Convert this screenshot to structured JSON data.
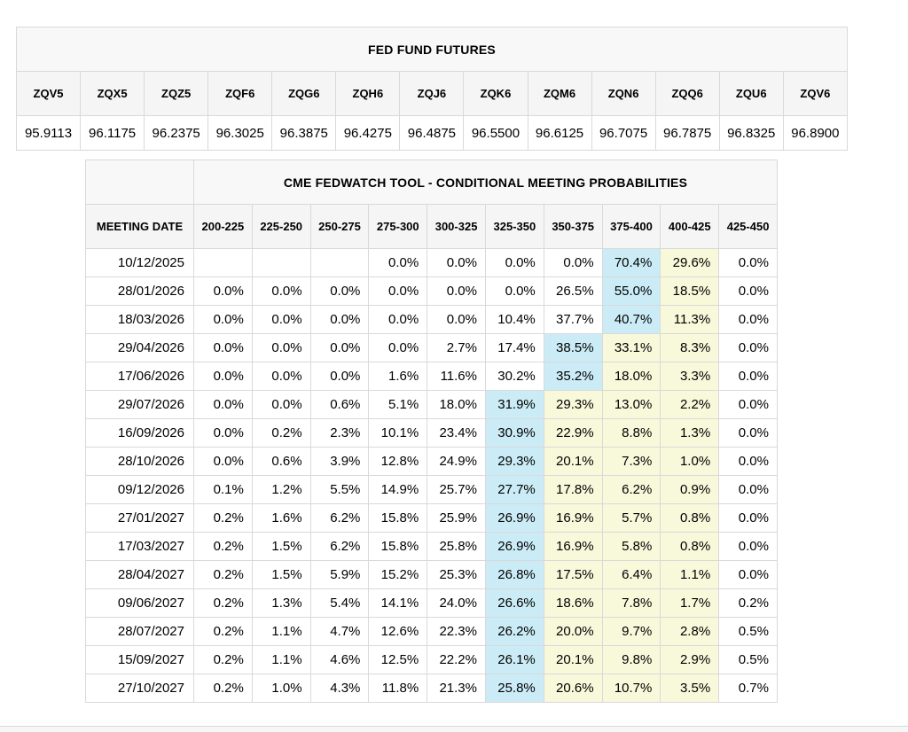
{
  "colors": {
    "highlight_blue": "#cbecf6",
    "highlight_yellow": "#f8f8db",
    "header_bg": "#f5f5f5",
    "title_bg": "#f8f8f8"
  },
  "futures_table": {
    "title": "FED FUND FUTURES",
    "columns": [
      "ZQV5",
      "ZQX5",
      "ZQZ5",
      "ZQF6",
      "ZQG6",
      "ZQH6",
      "ZQJ6",
      "ZQK6",
      "ZQM6",
      "ZQN6",
      "ZQQ6",
      "ZQU6",
      "ZQV6"
    ],
    "values": [
      "95.9113",
      "96.1175",
      "96.2375",
      "96.3025",
      "96.3875",
      "96.4275",
      "96.4875",
      "96.5500",
      "96.6125",
      "96.7075",
      "96.7875",
      "96.8325",
      "96.8900"
    ]
  },
  "fedwatch_table": {
    "title": "CME FEDWATCH TOOL - CONDITIONAL MEETING PROBABILITIES",
    "date_column_header": "MEETING DATE",
    "rate_column_headers": [
      "200-225",
      "225-250",
      "250-275",
      "275-300",
      "300-325",
      "325-350",
      "350-375",
      "375-400",
      "400-425",
      "425-450"
    ],
    "rows": [
      {
        "date": "10/12/2025",
        "values": [
          "",
          "",
          "",
          "0.0%",
          "0.0%",
          "0.0%",
          "0.0%",
          "70.4%",
          "29.6%",
          "0.0%"
        ],
        "highlights": [
          "",
          "",
          "",
          "",
          "",
          "",
          "",
          "blue",
          "yellow",
          ""
        ]
      },
      {
        "date": "28/01/2026",
        "values": [
          "0.0%",
          "0.0%",
          "0.0%",
          "0.0%",
          "0.0%",
          "0.0%",
          "26.5%",
          "55.0%",
          "18.5%",
          "0.0%"
        ],
        "highlights": [
          "",
          "",
          "",
          "",
          "",
          "",
          "",
          "blue",
          "yellow",
          ""
        ]
      },
      {
        "date": "18/03/2026",
        "values": [
          "0.0%",
          "0.0%",
          "0.0%",
          "0.0%",
          "0.0%",
          "10.4%",
          "37.7%",
          "40.7%",
          "11.3%",
          "0.0%"
        ],
        "highlights": [
          "",
          "",
          "",
          "",
          "",
          "",
          "",
          "blue",
          "yellow",
          ""
        ]
      },
      {
        "date": "29/04/2026",
        "values": [
          "0.0%",
          "0.0%",
          "0.0%",
          "0.0%",
          "2.7%",
          "17.4%",
          "38.5%",
          "33.1%",
          "8.3%",
          "0.0%"
        ],
        "highlights": [
          "",
          "",
          "",
          "",
          "",
          "",
          "blue",
          "yellow",
          "yellow",
          ""
        ]
      },
      {
        "date": "17/06/2026",
        "values": [
          "0.0%",
          "0.0%",
          "0.0%",
          "1.6%",
          "11.6%",
          "30.2%",
          "35.2%",
          "18.0%",
          "3.3%",
          "0.0%"
        ],
        "highlights": [
          "",
          "",
          "",
          "",
          "",
          "",
          "blue",
          "yellow",
          "yellow",
          ""
        ]
      },
      {
        "date": "29/07/2026",
        "values": [
          "0.0%",
          "0.0%",
          "0.6%",
          "5.1%",
          "18.0%",
          "31.9%",
          "29.3%",
          "13.0%",
          "2.2%",
          "0.0%"
        ],
        "highlights": [
          "",
          "",
          "",
          "",
          "",
          "blue",
          "yellow",
          "yellow",
          "yellow",
          ""
        ]
      },
      {
        "date": "16/09/2026",
        "values": [
          "0.0%",
          "0.2%",
          "2.3%",
          "10.1%",
          "23.4%",
          "30.9%",
          "22.9%",
          "8.8%",
          "1.3%",
          "0.0%"
        ],
        "highlights": [
          "",
          "",
          "",
          "",
          "",
          "blue",
          "yellow",
          "yellow",
          "yellow",
          ""
        ]
      },
      {
        "date": "28/10/2026",
        "values": [
          "0.0%",
          "0.6%",
          "3.9%",
          "12.8%",
          "24.9%",
          "29.3%",
          "20.1%",
          "7.3%",
          "1.0%",
          "0.0%"
        ],
        "highlights": [
          "",
          "",
          "",
          "",
          "",
          "blue",
          "yellow",
          "yellow",
          "yellow",
          ""
        ]
      },
      {
        "date": "09/12/2026",
        "values": [
          "0.1%",
          "1.2%",
          "5.5%",
          "14.9%",
          "25.7%",
          "27.7%",
          "17.8%",
          "6.2%",
          "0.9%",
          "0.0%"
        ],
        "highlights": [
          "",
          "",
          "",
          "",
          "",
          "blue",
          "yellow",
          "yellow",
          "yellow",
          ""
        ]
      },
      {
        "date": "27/01/2027",
        "values": [
          "0.2%",
          "1.6%",
          "6.2%",
          "15.8%",
          "25.9%",
          "26.9%",
          "16.9%",
          "5.7%",
          "0.8%",
          "0.0%"
        ],
        "highlights": [
          "",
          "",
          "",
          "",
          "",
          "blue",
          "yellow",
          "yellow",
          "yellow",
          ""
        ]
      },
      {
        "date": "17/03/2027",
        "values": [
          "0.2%",
          "1.5%",
          "6.2%",
          "15.8%",
          "25.8%",
          "26.9%",
          "16.9%",
          "5.8%",
          "0.8%",
          "0.0%"
        ],
        "highlights": [
          "",
          "",
          "",
          "",
          "",
          "blue",
          "yellow",
          "yellow",
          "yellow",
          ""
        ]
      },
      {
        "date": "28/04/2027",
        "values": [
          "0.2%",
          "1.5%",
          "5.9%",
          "15.2%",
          "25.3%",
          "26.8%",
          "17.5%",
          "6.4%",
          "1.1%",
          "0.0%"
        ],
        "highlights": [
          "",
          "",
          "",
          "",
          "",
          "blue",
          "yellow",
          "yellow",
          "yellow",
          ""
        ]
      },
      {
        "date": "09/06/2027",
        "values": [
          "0.2%",
          "1.3%",
          "5.4%",
          "14.1%",
          "24.0%",
          "26.6%",
          "18.6%",
          "7.8%",
          "1.7%",
          "0.2%"
        ],
        "highlights": [
          "",
          "",
          "",
          "",
          "",
          "blue",
          "yellow",
          "yellow",
          "yellow",
          ""
        ]
      },
      {
        "date": "28/07/2027",
        "values": [
          "0.2%",
          "1.1%",
          "4.7%",
          "12.6%",
          "22.3%",
          "26.2%",
          "20.0%",
          "9.7%",
          "2.8%",
          "0.5%"
        ],
        "highlights": [
          "",
          "",
          "",
          "",
          "",
          "blue",
          "yellow",
          "yellow",
          "yellow",
          ""
        ]
      },
      {
        "date": "15/09/2027",
        "values": [
          "0.2%",
          "1.1%",
          "4.6%",
          "12.5%",
          "22.2%",
          "26.1%",
          "20.1%",
          "9.8%",
          "2.9%",
          "0.5%"
        ],
        "highlights": [
          "",
          "",
          "",
          "",
          "",
          "blue",
          "yellow",
          "yellow",
          "yellow",
          ""
        ]
      },
      {
        "date": "27/10/2027",
        "values": [
          "0.2%",
          "1.0%",
          "4.3%",
          "11.8%",
          "21.3%",
          "25.8%",
          "20.6%",
          "10.7%",
          "3.5%",
          "0.7%"
        ],
        "highlights": [
          "",
          "",
          "",
          "",
          "",
          "blue",
          "yellow",
          "yellow",
          "yellow",
          ""
        ]
      }
    ]
  }
}
